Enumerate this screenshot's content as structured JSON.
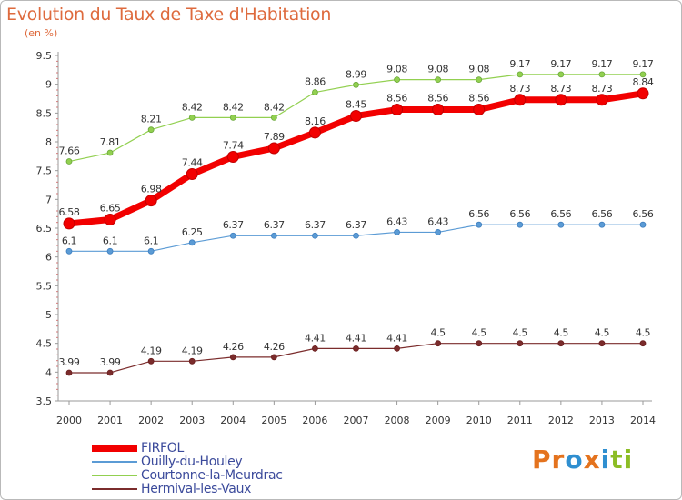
{
  "header": {
    "title": "Evolution du Taux de Taxe d'Habitation",
    "unit": "(en %)"
  },
  "logo": {
    "text": "Proxiti",
    "letters": [
      "P",
      "r",
      "o",
      "x",
      "i",
      "t",
      "i"
    ],
    "colors": [
      "#e4731e",
      "#e4731e",
      "#2f8fd0",
      "#e4731e",
      "#2f8fd0",
      "#8cbd25",
      "#8cbd25"
    ]
  },
  "chart_data": {
    "type": "line",
    "title": "Evolution du Taux de Taxe d'Habitation",
    "ylabel": "(en %)",
    "xlabel": "",
    "x": [
      "2000",
      "2001",
      "2002",
      "2003",
      "2004",
      "2005",
      "2006",
      "2007",
      "2008",
      "2009",
      "2010",
      "2011",
      "2012",
      "2013",
      "2014"
    ],
    "ylim": [
      3.5,
      9.5
    ],
    "yticks": [
      "3.5",
      "4",
      "4.5",
      "5",
      "5.5",
      "6",
      "6.5",
      "7",
      "7.5",
      "8",
      "8.5",
      "9",
      "9.5"
    ],
    "grid": false,
    "legend_position": "bottom-left",
    "series": [
      {
        "name": "FIRFOL",
        "color": "#f20000",
        "line_width": 7,
        "marker_radius": 6,
        "values": [
          6.58,
          6.65,
          6.98,
          7.44,
          7.74,
          7.89,
          8.16,
          8.45,
          8.56,
          8.56,
          8.56,
          8.73,
          8.73,
          8.73,
          8.84
        ],
        "labels": [
          "6.58",
          "6.65",
          "6.98",
          "7.44",
          "7.74",
          "7.89",
          "8.16",
          "8.45",
          "8.56",
          "8.56",
          "8.56",
          "8.73",
          "8.73",
          "8.73",
          "8.84"
        ]
      },
      {
        "name": "Ouilly-du-Houley",
        "color": "#5b9bd5",
        "marker_color": "#3f7fbf",
        "line_width": 1.2,
        "marker_radius": 3,
        "values": [
          6.1,
          6.1,
          6.1,
          6.25,
          6.37,
          6.37,
          6.37,
          6.37,
          6.43,
          6.43,
          6.56,
          6.56,
          6.56,
          6.56,
          6.56
        ],
        "labels": [
          "6.1",
          "6.1",
          "6.1",
          "6.25",
          "6.37",
          "6.37",
          "6.37",
          "6.37",
          "6.43",
          "6.43",
          "6.56",
          "6.56",
          "6.56",
          "6.56",
          "6.56"
        ]
      },
      {
        "name": "Courtonne-la-Meurdrac",
        "color": "#92d050",
        "marker_color": "#6aa83a",
        "line_width": 1.2,
        "marker_radius": 3,
        "values": [
          7.66,
          7.81,
          8.21,
          8.42,
          8.42,
          8.42,
          8.86,
          8.99,
          9.08,
          9.08,
          9.08,
          9.17,
          9.17,
          9.17,
          9.17
        ],
        "labels": [
          "7.66",
          "7.81",
          "8.21",
          "8.42",
          "8.42",
          "8.42",
          "8.86",
          "8.99",
          "9.08",
          "9.08",
          "9.08",
          "9.17",
          "9.17",
          "9.17",
          "9.17"
        ]
      },
      {
        "name": "Hermival-les-Vaux",
        "color": "#7b2c2c",
        "marker_color": "#6a1f1f",
        "line_width": 1.2,
        "marker_radius": 3,
        "values": [
          3.99,
          3.99,
          4.19,
          4.19,
          4.26,
          4.26,
          4.41,
          4.41,
          4.41,
          4.5,
          4.5,
          4.5,
          4.5,
          4.5,
          4.5
        ],
        "labels": [
          "3.99",
          "3.99",
          "4.19",
          "4.19",
          "4.26",
          "4.26",
          "4.41",
          "4.41",
          "4.41",
          "4.5",
          "4.5",
          "4.5",
          "4.5",
          "4.5",
          "4.5"
        ]
      }
    ]
  }
}
